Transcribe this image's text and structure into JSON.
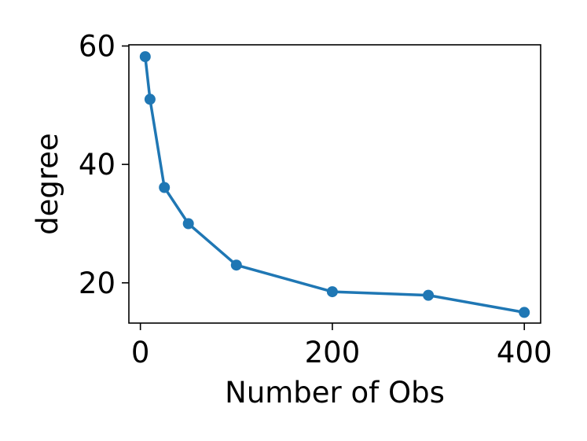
{
  "chart_data": {
    "type": "line",
    "title": "",
    "xlabel": "Number of Obs",
    "ylabel": "degree",
    "xlim": [
      -12,
      417
    ],
    "ylim": [
      13.2,
      60.2
    ],
    "xticks": [
      0,
      200,
      400
    ],
    "yticks": [
      20,
      40,
      60
    ],
    "grid": false,
    "series": [
      {
        "color": "#1f77b4",
        "marker": "circle",
        "x": [
          5,
          10,
          25,
          50,
          100,
          200,
          300,
          400
        ],
        "y": [
          58.2,
          51.0,
          36.1,
          30.0,
          23.0,
          18.5,
          17.9,
          15.0
        ]
      }
    ]
  }
}
